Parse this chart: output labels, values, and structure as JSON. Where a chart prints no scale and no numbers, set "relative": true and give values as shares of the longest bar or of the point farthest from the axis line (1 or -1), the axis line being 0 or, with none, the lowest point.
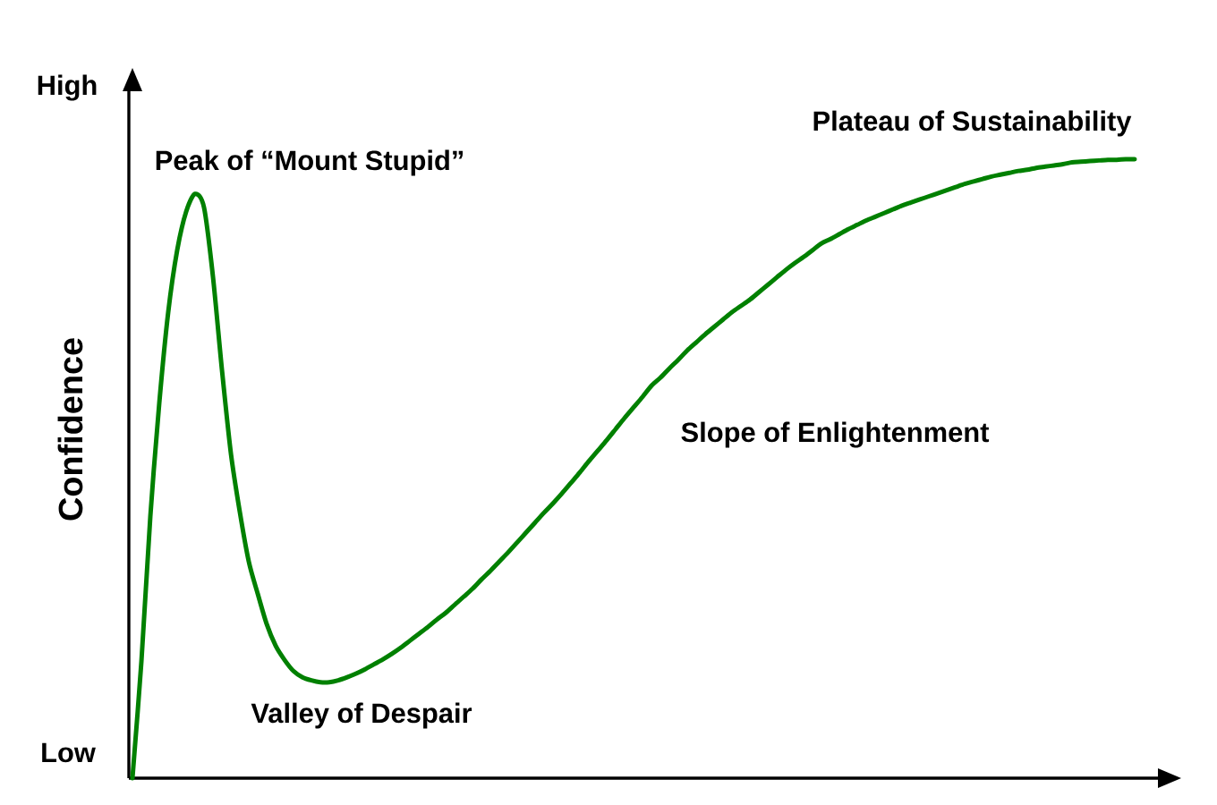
{
  "chart_data": {
    "type": "line",
    "relative": true,
    "ylabel": "Confidence",
    "line_style": "solid",
    "categories": [
      null,
      null,
      null,
      null,
      null,
      null,
      null,
      null,
      null,
      null,
      null,
      null,
      null,
      null,
      null,
      null,
      null,
      null,
      null,
      null,
      null,
      null,
      null,
      null,
      null,
      null,
      null,
      null,
      null,
      null,
      null,
      null,
      null,
      null,
      null,
      null,
      null,
      null,
      null,
      null,
      null,
      null,
      null,
      null,
      null,
      null,
      null,
      null,
      null,
      null,
      null,
      null,
      null,
      null,
      null,
      null,
      null,
      null,
      null,
      null,
      null,
      null,
      null,
      null,
      null,
      null,
      null,
      null,
      null,
      null,
      null,
      null,
      null,
      null,
      null,
      null,
      null,
      null,
      null,
      null,
      null,
      null,
      null,
      null,
      null,
      null,
      null,
      null,
      null,
      null,
      null,
      null,
      null,
      null,
      null,
      null,
      null,
      null,
      null,
      null,
      null,
      null,
      null,
      null,
      null,
      null,
      null,
      null,
      null,
      null,
      null,
      null,
      null
    ],
    "series": [
      {
        "color": "#008000",
        "values": [
          0.0,
          0.188,
          0.423,
          0.606,
          0.753,
          0.853,
          0.915,
          0.944,
          0.922,
          0.81,
          0.66,
          0.525,
          0.43,
          0.35,
          0.298,
          0.249,
          0.214,
          0.191,
          0.173,
          0.163,
          0.158,
          0.155,
          0.155,
          0.158,
          0.163,
          0.169,
          0.176,
          0.184,
          0.192,
          0.201,
          0.211,
          0.222,
          0.233,
          0.244,
          0.256,
          0.267,
          0.28,
          0.293,
          0.306,
          0.321,
          0.335,
          0.35,
          0.365,
          0.381,
          0.397,
          0.413,
          0.429,
          0.444,
          0.46,
          0.477,
          0.494,
          0.512,
          0.529,
          0.546,
          0.564,
          0.582,
          0.599,
          0.616,
          0.634,
          0.647,
          0.662,
          0.676,
          0.691,
          0.704,
          0.717,
          0.729,
          0.741,
          0.753,
          0.763,
          0.773,
          0.785,
          0.797,
          0.809,
          0.821,
          0.832,
          0.842,
          0.853,
          0.864,
          0.871,
          0.879,
          0.887,
          0.894,
          0.901,
          0.907,
          0.913,
          0.919,
          0.925,
          0.93,
          0.935,
          0.94,
          0.945,
          0.95,
          0.955,
          0.96,
          0.964,
          0.968,
          0.972,
          0.975,
          0.978,
          0.981,
          0.983,
          0.986,
          0.988,
          0.99,
          0.992,
          0.995,
          0.996,
          0.997,
          0.998,
          0.999,
          0.999,
          1.0,
          1.0
        ]
      }
    ],
    "annotations": [
      "High",
      "Low",
      "Peak of “Mount Stupid”",
      "Valley of Despair",
      "Slope of Enlightenment",
      "Plateau of Sustainability"
    ]
  }
}
